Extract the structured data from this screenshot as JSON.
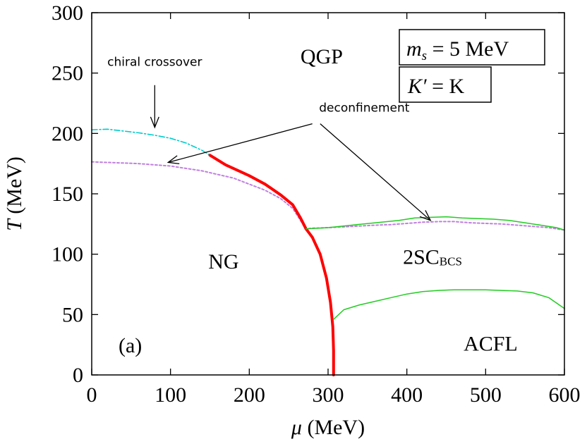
{
  "chart_data": {
    "type": "line",
    "xlabel_symbol": "μ",
    "xlabel_unit": " (MeV)",
    "ylabel_symbol": "T",
    "ylabel_unit": " (MeV)",
    "xlim": [
      0,
      600
    ],
    "ylim": [
      0,
      300
    ],
    "xticks": [
      0,
      100,
      200,
      300,
      400,
      500,
      600
    ],
    "yticks": [
      0,
      50,
      100,
      150,
      200,
      250,
      300
    ],
    "grid": false,
    "panel_label": "(a)",
    "params": {
      "ms_symbol": "m",
      "ms_sub": "s",
      "ms_value": " = 5 MeV",
      "kprime_lhs": "K′",
      "kprime_rhs": " = K"
    },
    "regions": [
      {
        "name": "QGP",
        "x": 265,
        "y": 258
      },
      {
        "name": "NG",
        "x": 148,
        "y": 88
      },
      {
        "name": "2SC",
        "sub": "BCS",
        "x": 395,
        "y": 92
      },
      {
        "name": "ACFL",
        "x": 472,
        "y": 20
      }
    ],
    "annotations": [
      {
        "text": "chiral crossover",
        "x": 80,
        "y": 256
      },
      {
        "text": "deconfinement",
        "x": 346,
        "y": 218
      }
    ],
    "series": [
      {
        "color": "#00cccc",
        "style": "dashdot",
        "width": 1.6,
        "points": [
          [
            0,
            203
          ],
          [
            20,
            203.5
          ],
          [
            40,
            202
          ],
          [
            60,
            200.5
          ],
          [
            80,
            198.5
          ],
          [
            100,
            196
          ],
          [
            120,
            192
          ],
          [
            140,
            186
          ],
          [
            150,
            182
          ]
        ]
      },
      {
        "color": "#c080e0",
        "style": "dotted",
        "width": 2,
        "points": [
          [
            0,
            176.5
          ],
          [
            20,
            176
          ],
          [
            40,
            175.5
          ],
          [
            60,
            175
          ],
          [
            80,
            174
          ],
          [
            100,
            173
          ],
          [
            120,
            171
          ],
          [
            140,
            169
          ],
          [
            160,
            166
          ],
          [
            180,
            163
          ],
          [
            200,
            158
          ],
          [
            220,
            153
          ],
          [
            240,
            146
          ],
          [
            255,
            138
          ],
          [
            265,
            128
          ],
          [
            272,
            121
          ],
          [
            280,
            121.5
          ],
          [
            300,
            122
          ],
          [
            330,
            123
          ],
          [
            360,
            124
          ],
          [
            380,
            124.5
          ],
          [
            400,
            125.5
          ],
          [
            420,
            126.5
          ],
          [
            440,
            127
          ],
          [
            460,
            127
          ],
          [
            480,
            126
          ],
          [
            500,
            125.5
          ],
          [
            520,
            125
          ],
          [
            540,
            124
          ],
          [
            560,
            123
          ],
          [
            580,
            122
          ],
          [
            600,
            120
          ]
        ]
      },
      {
        "color": "#ff0000",
        "style": "solid",
        "width": 4,
        "points": [
          [
            150,
            182
          ],
          [
            170,
            174
          ],
          [
            190,
            168
          ],
          [
            200,
            165
          ],
          [
            220,
            158
          ],
          [
            240,
            149
          ],
          [
            255,
            141
          ],
          [
            265,
            130
          ],
          [
            272,
            121
          ],
          [
            280,
            114
          ],
          [
            290,
            100
          ],
          [
            298,
            80
          ],
          [
            303,
            60
          ],
          [
            306,
            40
          ],
          [
            307,
            20
          ],
          [
            307,
            0
          ]
        ]
      },
      {
        "color": "#22cc22",
        "style": "solid",
        "width": 1.5,
        "points": [
          [
            272,
            121
          ],
          [
            300,
            122
          ],
          [
            330,
            124
          ],
          [
            360,
            126
          ],
          [
            390,
            128
          ],
          [
            410,
            130
          ],
          [
            430,
            130.5
          ],
          [
            450,
            131
          ],
          [
            470,
            130
          ],
          [
            490,
            129.5
          ],
          [
            510,
            129
          ],
          [
            530,
            128
          ],
          [
            550,
            126
          ],
          [
            570,
            124
          ],
          [
            590,
            122
          ],
          [
            600,
            120
          ]
        ]
      },
      {
        "color": "#22cc22",
        "style": "solid",
        "width": 1.5,
        "points": [
          [
            307,
            46
          ],
          [
            320,
            54
          ],
          [
            340,
            58
          ],
          [
            360,
            61
          ],
          [
            380,
            64
          ],
          [
            400,
            67
          ],
          [
            420,
            69
          ],
          [
            440,
            70
          ],
          [
            460,
            70.5
          ],
          [
            480,
            70.5
          ],
          [
            500,
            70.5
          ],
          [
            520,
            70
          ],
          [
            540,
            69.5
          ],
          [
            560,
            68
          ],
          [
            580,
            64
          ],
          [
            600,
            55
          ]
        ]
      }
    ],
    "arrows": [
      {
        "from": [
          80,
          240
        ],
        "to": [
          80,
          205
        ]
      },
      {
        "from": [
          280,
          208
        ],
        "to": [
          97,
          176
        ]
      },
      {
        "from": [
          290,
          208
        ],
        "to": [
          430,
          128
        ]
      }
    ]
  }
}
